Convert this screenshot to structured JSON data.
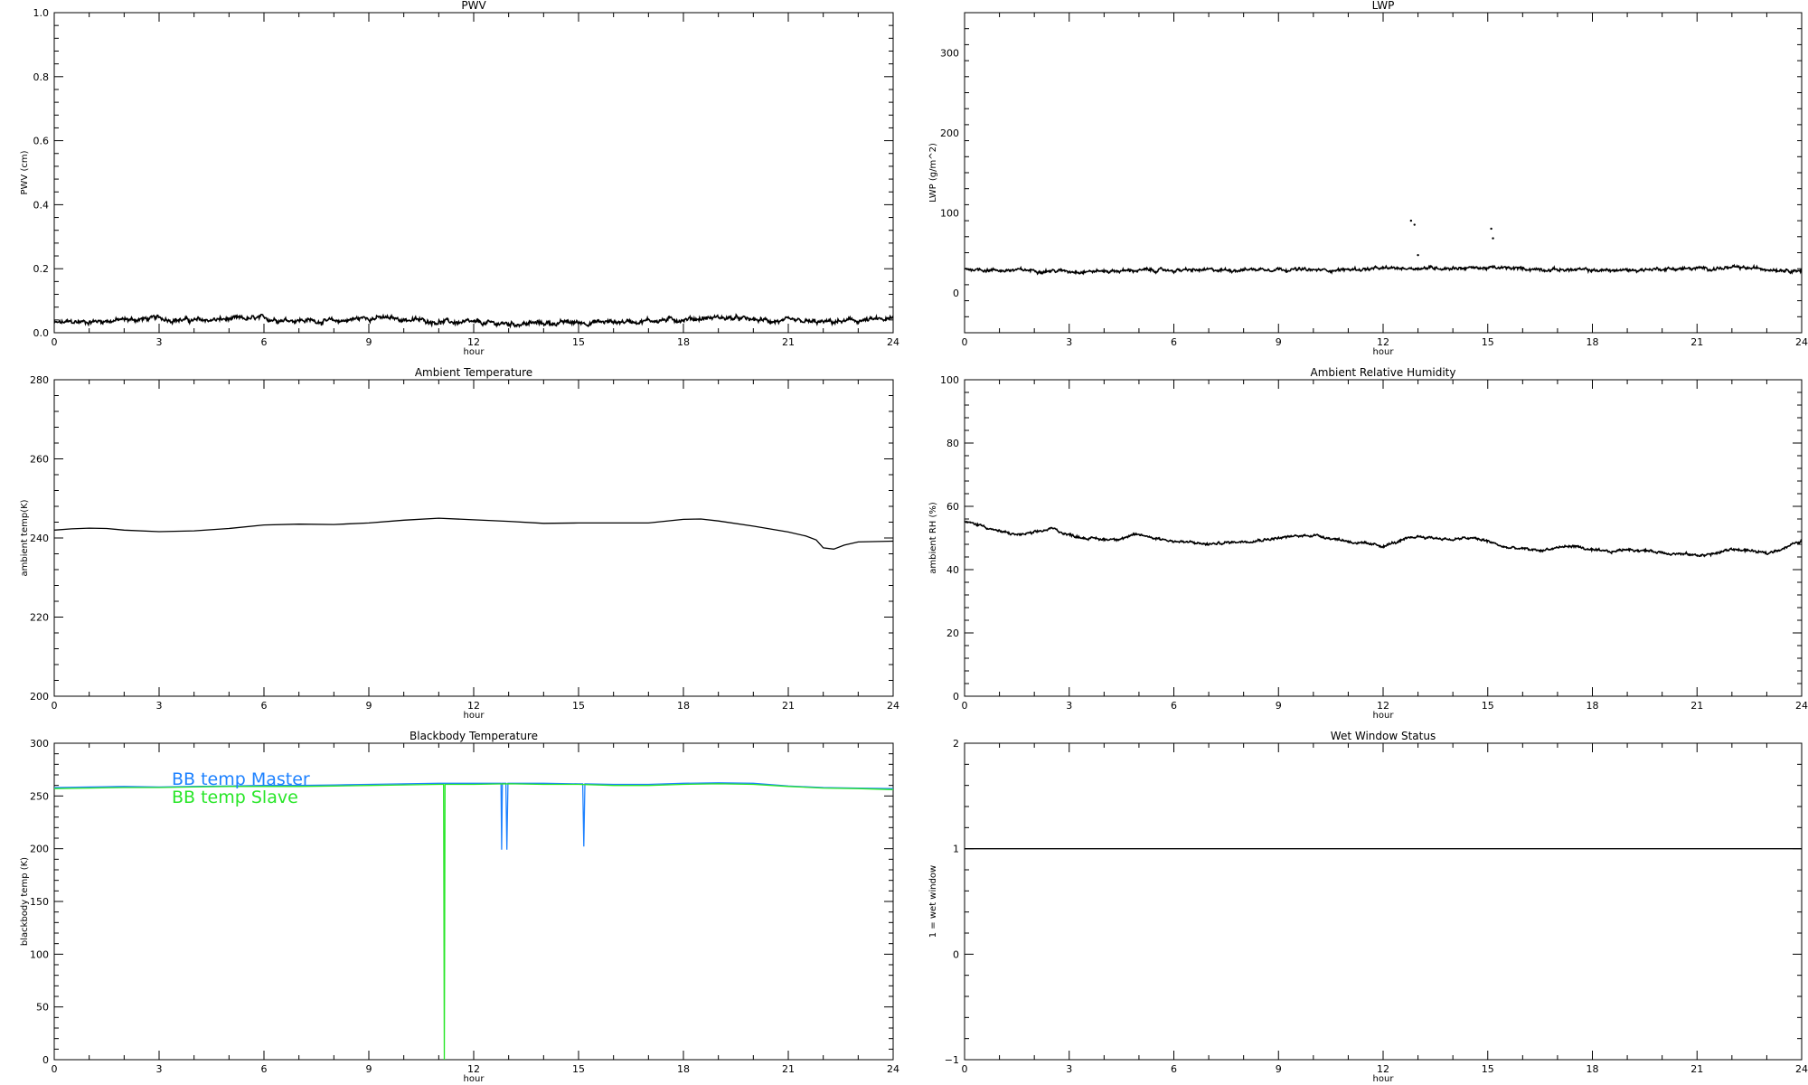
{
  "figure": {
    "panel_count": 6,
    "layout": "3 rows x 2 columns"
  },
  "chart_data": [
    {
      "id": "pwv",
      "type": "line",
      "title": "PWV",
      "xlabel": "hour",
      "ylabel": "PWV (cm)",
      "xlim": [
        0,
        24
      ],
      "ylim": [
        0,
        1.0
      ],
      "xticks": [
        0,
        3,
        6,
        9,
        12,
        15,
        18,
        21,
        24
      ],
      "yticks": [
        0.0,
        0.2,
        0.4,
        0.6,
        0.8,
        1.0
      ],
      "ytick_labels": [
        "0.0",
        "0.2",
        "0.4",
        "0.6",
        "0.8",
        "1.0"
      ],
      "grid": false,
      "style": "noisy",
      "noise": 0.008,
      "series": [
        {
          "color": "#000000",
          "x": [
            0,
            1,
            2,
            3,
            4,
            5,
            6,
            7,
            8,
            9,
            10,
            11,
            12,
            13,
            14,
            15,
            16,
            17,
            18,
            19,
            20,
            21,
            22,
            23,
            24
          ],
          "y": [
            0.03,
            0.035,
            0.04,
            0.045,
            0.038,
            0.042,
            0.044,
            0.04,
            0.035,
            0.048,
            0.042,
            0.035,
            0.03,
            0.028,
            0.03,
            0.032,
            0.034,
            0.038,
            0.042,
            0.048,
            0.04,
            0.035,
            0.032,
            0.038,
            0.042
          ]
        }
      ]
    },
    {
      "id": "lwp",
      "type": "line",
      "title": "LWP",
      "xlabel": "hour",
      "ylabel": "LWP (g/m^2)",
      "xlim": [
        0,
        24
      ],
      "ylim": [
        -50,
        350
      ],
      "xticks": [
        0,
        3,
        6,
        9,
        12,
        15,
        18,
        21,
        24
      ],
      "yticks": [
        0,
        100,
        200,
        300
      ],
      "ytick_labels": [
        "0",
        "100",
        "200",
        "300"
      ],
      "grid": false,
      "style": "noisy",
      "noise": 2.2,
      "series": [
        {
          "color": "#000000",
          "x": [
            0,
            1,
            2,
            3,
            4,
            5,
            6,
            7,
            8,
            9,
            10,
            11,
            12,
            13,
            14,
            15,
            16,
            17,
            18,
            19,
            20,
            21,
            22,
            23,
            24
          ],
          "y": [
            30,
            28,
            28,
            27,
            27,
            28,
            28,
            28,
            29,
            30,
            28,
            29,
            30,
            31,
            31,
            31,
            30,
            29,
            28,
            28,
            30,
            30,
            31,
            30,
            28
          ]
        }
      ],
      "scatter_points": {
        "x": [
          12.8,
          12.9,
          13.0,
          15.1,
          15.15
        ],
        "y": [
          90,
          85,
          47,
          80,
          68
        ]
      }
    },
    {
      "id": "ambient_temp",
      "type": "line",
      "title": "Ambient Temperature",
      "xlabel": "hour",
      "ylabel": "ambient temp(K)",
      "xlim": [
        0,
        24
      ],
      "ylim": [
        200,
        280
      ],
      "xticks": [
        0,
        3,
        6,
        9,
        12,
        15,
        18,
        21,
        24
      ],
      "yticks": [
        200,
        220,
        240,
        260,
        280
      ],
      "ytick_labels": [
        "200",
        "220",
        "240",
        "260",
        "280"
      ],
      "grid": false,
      "style": "smooth",
      "series": [
        {
          "color": "#000000",
          "x": [
            0,
            0.5,
            1,
            1.5,
            2,
            3,
            4,
            5,
            6,
            7,
            8,
            9,
            10,
            11,
            12,
            13,
            14,
            15,
            16,
            17,
            18,
            18.5,
            19,
            20,
            21,
            21.5,
            21.8,
            22,
            22.3,
            22.6,
            23,
            24
          ],
          "y": [
            242,
            242.3,
            242.5,
            242.4,
            242,
            241.6,
            241.8,
            242.4,
            243.3,
            243.5,
            243.4,
            243.8,
            244.5,
            245.0,
            244.6,
            244.2,
            243.7,
            243.8,
            243.8,
            243.8,
            244.7,
            244.8,
            244.3,
            243,
            241.5,
            240.5,
            239.5,
            237.5,
            237.2,
            238.2,
            239,
            239.2
          ]
        }
      ]
    },
    {
      "id": "ambient_rh",
      "type": "line",
      "title": "Ambient Relative Humidity",
      "xlabel": "hour",
      "ylabel": "ambient RH (%)",
      "xlim": [
        0,
        24
      ],
      "ylim": [
        0,
        100
      ],
      "xticks": [
        0,
        3,
        6,
        9,
        12,
        15,
        18,
        21,
        24
      ],
      "yticks": [
        0,
        20,
        40,
        60,
        80,
        100
      ],
      "ytick_labels": [
        "0",
        "20",
        "40",
        "60",
        "80",
        "100"
      ],
      "grid": false,
      "style": "noisy",
      "noise": 0.45,
      "series": [
        {
          "color": "#000000",
          "x": [
            0,
            0.5,
            1,
            1.5,
            2,
            2.5,
            3,
            3.5,
            4,
            4.5,
            5,
            5.5,
            6,
            6.5,
            7,
            7.5,
            8,
            8.5,
            9,
            9.5,
            10,
            10.5,
            11,
            11.5,
            12,
            12.5,
            13,
            13.5,
            14,
            14.5,
            15,
            15.5,
            16,
            16.5,
            17,
            17.5,
            18,
            18.5,
            19,
            19.5,
            20,
            20.5,
            21,
            21.5,
            22,
            22.5,
            23,
            23.5,
            24
          ],
          "y": [
            55,
            54,
            52,
            51,
            51.5,
            53,
            51,
            50,
            49.5,
            50,
            51,
            50,
            49,
            48.5,
            48,
            48.5,
            49,
            49.5,
            50,
            50.5,
            51,
            50,
            49,
            48,
            47.5,
            49,
            50.5,
            50,
            49.5,
            50,
            49,
            47,
            46.5,
            46,
            47,
            47.5,
            46,
            45.5,
            46.5,
            46,
            45.5,
            45,
            44.5,
            45,
            46.5,
            46,
            45,
            47,
            49
          ]
        }
      ]
    },
    {
      "id": "blackbody_temp",
      "type": "line",
      "title": "Blackbody Temperature",
      "xlabel": "hour",
      "ylabel": "blackbody temp (K)",
      "xlim": [
        0,
        24
      ],
      "ylim": [
        0,
        300
      ],
      "xticks": [
        0,
        3,
        6,
        9,
        12,
        15,
        18,
        21,
        24
      ],
      "yticks": [
        0,
        50,
        100,
        150,
        200,
        250,
        300
      ],
      "ytick_labels": [
        "0",
        "50",
        "100",
        "150",
        "200",
        "250",
        "300"
      ],
      "grid": false,
      "style": "smooth",
      "legend_position": "top-left",
      "series": [
        {
          "name": "BB temp Master",
          "color": "#1e82ff",
          "x": [
            0,
            1,
            2,
            3,
            4,
            5,
            6,
            7,
            8,
            9,
            10,
            11,
            12,
            12.78,
            12.8,
            12.82,
            12.92,
            12.95,
            12.98,
            13,
            14,
            15,
            15.12,
            15.15,
            15.18,
            16,
            17,
            18,
            19,
            20,
            21,
            22,
            23,
            24
          ],
          "y": [
            258,
            258.5,
            259,
            258.5,
            259,
            259.5,
            260,
            260,
            260.5,
            261,
            261.5,
            262,
            262,
            262,
            199,
            262,
            262,
            199,
            262,
            262,
            262,
            261.5,
            261.5,
            202,
            261.5,
            261,
            261,
            262,
            262.5,
            262,
            259.5,
            258,
            257.5,
            257
          ]
        },
        {
          "name": "BB temp Slave",
          "color": "#28e628",
          "x": [
            0,
            1,
            2,
            3,
            4,
            5,
            6,
            7,
            8,
            9,
            10,
            11,
            11.14,
            11.16,
            11.18,
            12,
            13,
            14,
            15,
            16,
            17,
            18,
            19,
            20,
            21,
            22,
            23,
            24
          ],
          "y": [
            257,
            257.5,
            258,
            258,
            258.5,
            259,
            259,
            259,
            259.5,
            260,
            260.5,
            261,
            261,
            0,
            261,
            261,
            261.5,
            261,
            261,
            260,
            260,
            261,
            261.5,
            261,
            259,
            257.5,
            257,
            256
          ]
        }
      ]
    },
    {
      "id": "wet_window",
      "type": "line",
      "title": "Wet Window Status",
      "xlabel": "hour",
      "ylabel": "1 = wet window",
      "xlim": [
        0,
        24
      ],
      "ylim": [
        -1,
        2
      ],
      "xticks": [
        0,
        3,
        6,
        9,
        12,
        15,
        18,
        21,
        24
      ],
      "yticks": [
        -1,
        0,
        1,
        2
      ],
      "ytick_labels": [
        "−1",
        "0",
        "1",
        "2"
      ],
      "grid": false,
      "style": "smooth",
      "series": [
        {
          "color": "#000000",
          "x": [
            0,
            24
          ],
          "y": [
            1,
            1
          ]
        }
      ]
    }
  ]
}
